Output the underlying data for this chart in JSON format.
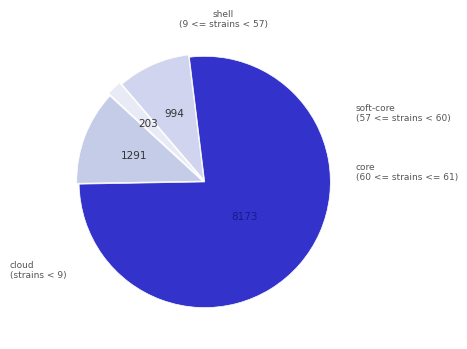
{
  "labels": [
    "cloud\n(strains < 9)",
    "shell\n(9 <= strains < 57)",
    "soft-core\n(57 <= strains < 60)",
    "core\n(60 <= strains <= 61)"
  ],
  "values": [
    8173,
    1291,
    203,
    994
  ],
  "colors": [
    "#3333cc",
    "#c5cce8",
    "#e8eaf5",
    "#d0d4ee"
  ],
  "startangle": 97,
  "explode": [
    0,
    0.02,
    0.04,
    0.02
  ],
  "label_fontsize": 6.5,
  "value_fontsize": 7.5,
  "background_color": "#ffffff"
}
